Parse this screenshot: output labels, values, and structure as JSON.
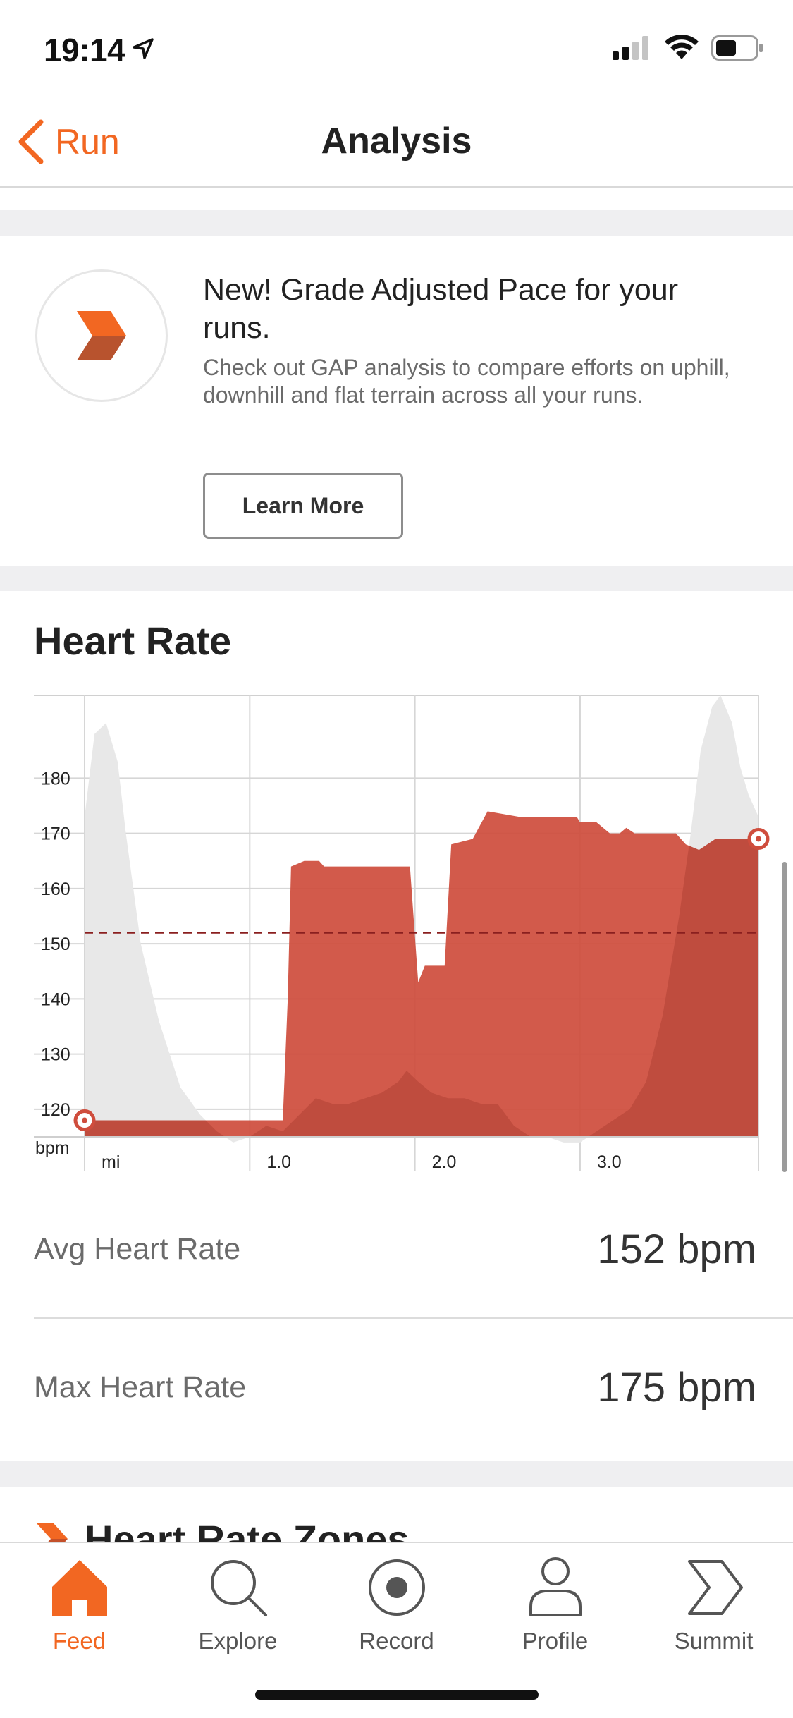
{
  "status_bar": {
    "time": "19:14"
  },
  "nav": {
    "back_label": "Run",
    "title": "Analysis"
  },
  "promo": {
    "title": "New! Grade Adjusted Pace for your runs.",
    "description": "Check out GAP analysis to compare efforts on uphill, downhill and flat terrain across all your runs.",
    "button_label": "Learn More"
  },
  "heart_rate": {
    "title": "Heart Rate",
    "avg_label": "Avg Heart Rate",
    "avg_value": "152 bpm",
    "max_label": "Max Heart Rate",
    "max_value": "175 bpm"
  },
  "zones": {
    "title": "Heart Rate Zones"
  },
  "tabs": [
    {
      "label": "Feed",
      "icon": "home-icon",
      "active": true
    },
    {
      "label": "Explore",
      "icon": "search-icon",
      "active": false
    },
    {
      "label": "Record",
      "icon": "record-icon",
      "active": false
    },
    {
      "label": "Profile",
      "icon": "profile-icon",
      "active": false
    },
    {
      "label": "Summit",
      "icon": "summit-icon",
      "active": false
    }
  ],
  "colors": {
    "accent": "#f26722",
    "hr_fill": "#cf4d3d",
    "elevation_fill": "#e8e8e8",
    "avg_line": "#8a1f1f"
  },
  "chart_data": {
    "type": "area",
    "title": "",
    "xlabel": "mi",
    "ylabel": "bpm",
    "x_ticks": [
      "1.0",
      "2.0",
      "3.0"
    ],
    "y_ticks": [
      120,
      130,
      140,
      150,
      160,
      170,
      180
    ],
    "xlim": [
      0,
      4.08
    ],
    "ylim": [
      115,
      195
    ],
    "grid": true,
    "avg_line": 152,
    "series": [
      {
        "kind": "heart_rate",
        "x": [
          0,
          1.2,
          1.23,
          1.25,
          1.33,
          1.42,
          1.45,
          1.66,
          1.97,
          2.02,
          2.06,
          2.18,
          2.22,
          2.35,
          2.44,
          2.63,
          2.98,
          3.0,
          3.1,
          3.18,
          3.24,
          3.28,
          3.33,
          3.45,
          3.5,
          3.58,
          3.64,
          3.72,
          3.82,
          3.91,
          4.08
        ],
        "y": [
          118,
          118,
          140,
          164,
          165,
          165,
          164,
          164,
          164,
          143,
          146,
          146,
          168,
          169,
          174,
          173,
          173,
          172,
          172,
          170,
          170,
          171,
          170,
          170,
          170,
          170,
          168,
          167,
          169,
          169,
          169
        ]
      },
      {
        "kind": "elevation",
        "x": [
          0,
          0.06,
          0.13,
          0.2,
          0.25,
          0.34,
          0.45,
          0.58,
          0.7,
          0.8,
          0.9,
          1.0,
          1.1,
          1.2,
          1.3,
          1.4,
          1.5,
          1.6,
          1.7,
          1.8,
          1.9,
          1.95,
          2.02,
          2.1,
          2.2,
          2.3,
          2.4,
          2.5,
          2.6,
          2.7,
          2.8,
          2.9,
          3.0,
          3.1,
          3.2,
          3.3,
          3.4,
          3.5,
          3.6,
          3.67,
          3.73,
          3.8,
          3.85,
          3.92,
          3.97,
          4.02,
          4.08
        ],
        "y": [
          173,
          188,
          190,
          183,
          170,
          150,
          136,
          124,
          119,
          116,
          114,
          115,
          117,
          116,
          119,
          122,
          121,
          121,
          122,
          123,
          125,
          127,
          125,
          123,
          122,
          122,
          121,
          121,
          117,
          115,
          115,
          114,
          114,
          116,
          118,
          120,
          125,
          137,
          155,
          170,
          185,
          193,
          195,
          190,
          182,
          177,
          173
        ]
      }
    ]
  }
}
